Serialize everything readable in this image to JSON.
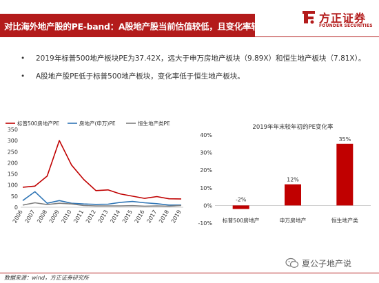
{
  "header": {
    "title": "对比海外地产股的PE-band：A股地产股当前估值较低，且变化率较弱",
    "brand_color": "#b31b1b"
  },
  "logo": {
    "cn": "方正证券",
    "en": "FOUNDER SECURITIES",
    "icon": "founder-logo-icon"
  },
  "bullets": [
    {
      "marker": "•",
      "text": "2019年标普500地产板块PE为37.42X，远大于申万房地产板块（9.89X）和恒生地产板块（7.81X）。"
    },
    {
      "marker": "•",
      "text": "A股地产股PE低于标普500地产板块，变化率低于恒生地产板块。"
    }
  ],
  "chart_data": [
    {
      "type": "line",
      "title": "",
      "x": [
        "2006",
        "2007",
        "2008",
        "2009",
        "2010",
        "2011",
        "2012",
        "2013",
        "2014",
        "2015",
        "2016",
        "2017",
        "2018",
        "2019"
      ],
      "ylim": [
        0,
        350
      ],
      "yticks": [
        0,
        50,
        100,
        150,
        200,
        250,
        300,
        350
      ],
      "legend": "top",
      "series": [
        {
          "name": "标普500房地产PE",
          "color": "#c00000",
          "values": [
            90,
            95,
            140,
            300,
            190,
            125,
            75,
            78,
            60,
            50,
            40,
            48,
            38,
            37.42
          ]
        },
        {
          "name": "房地产(申万)PE",
          "color": "#2f75b5",
          "values": [
            30,
            70,
            18,
            30,
            18,
            15,
            13,
            14,
            22,
            26,
            20,
            16,
            10,
            9.89
          ]
        },
        {
          "name": "恒生地产类PE",
          "color": "#7f7f7f",
          "values": [
            10,
            20,
            12,
            18,
            15,
            8,
            6,
            6,
            6,
            7,
            5,
            6,
            5,
            7.81
          ]
        }
      ]
    },
    {
      "type": "bar",
      "title": "2019年年末较年初的PE变化率",
      "categories": [
        "标普500房地产",
        "申万房地产",
        "恒生地产类"
      ],
      "values": [
        -2,
        12,
        35
      ],
      "value_labels": [
        "-2%",
        "12%",
        "35%"
      ],
      "ylim": [
        -10,
        40
      ],
      "yticks": [
        "-10%",
        "0%",
        "10%",
        "20%",
        "30%",
        "40%"
      ],
      "color": "#c00000"
    }
  ],
  "footer": {
    "source": "数据来源：wind，方正证券研究所",
    "watermark": "夏公子地产说",
    "watermark_icon": "wechat-icon"
  }
}
